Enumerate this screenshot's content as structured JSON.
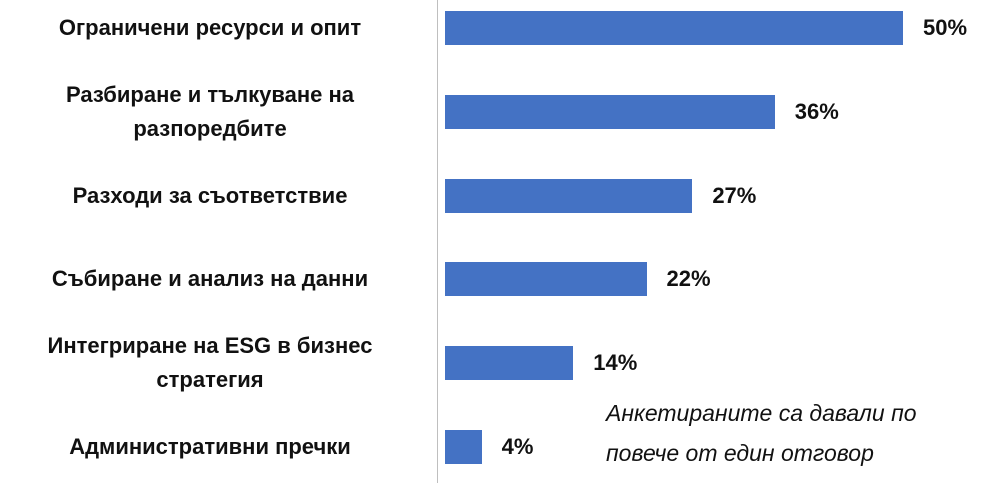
{
  "chart_data": {
    "type": "bar",
    "orientation": "horizontal",
    "categories": [
      "Ограничени ресурси и опит",
      "Разбиране и тълкуване на разпоредбите",
      "Разходи за съответствие",
      "Събиране и анализ на данни",
      "Интегриране на ESG в бизнес стратегия",
      "Административни пречки"
    ],
    "values": [
      50,
      36,
      27,
      22,
      14,
      4
    ],
    "value_labels": [
      "50%",
      "36%",
      "27%",
      "22%",
      "14%",
      "4%"
    ],
    "color": "#4472c4",
    "annotation": "Анкетираните са давали по повече от един отговор"
  }
}
